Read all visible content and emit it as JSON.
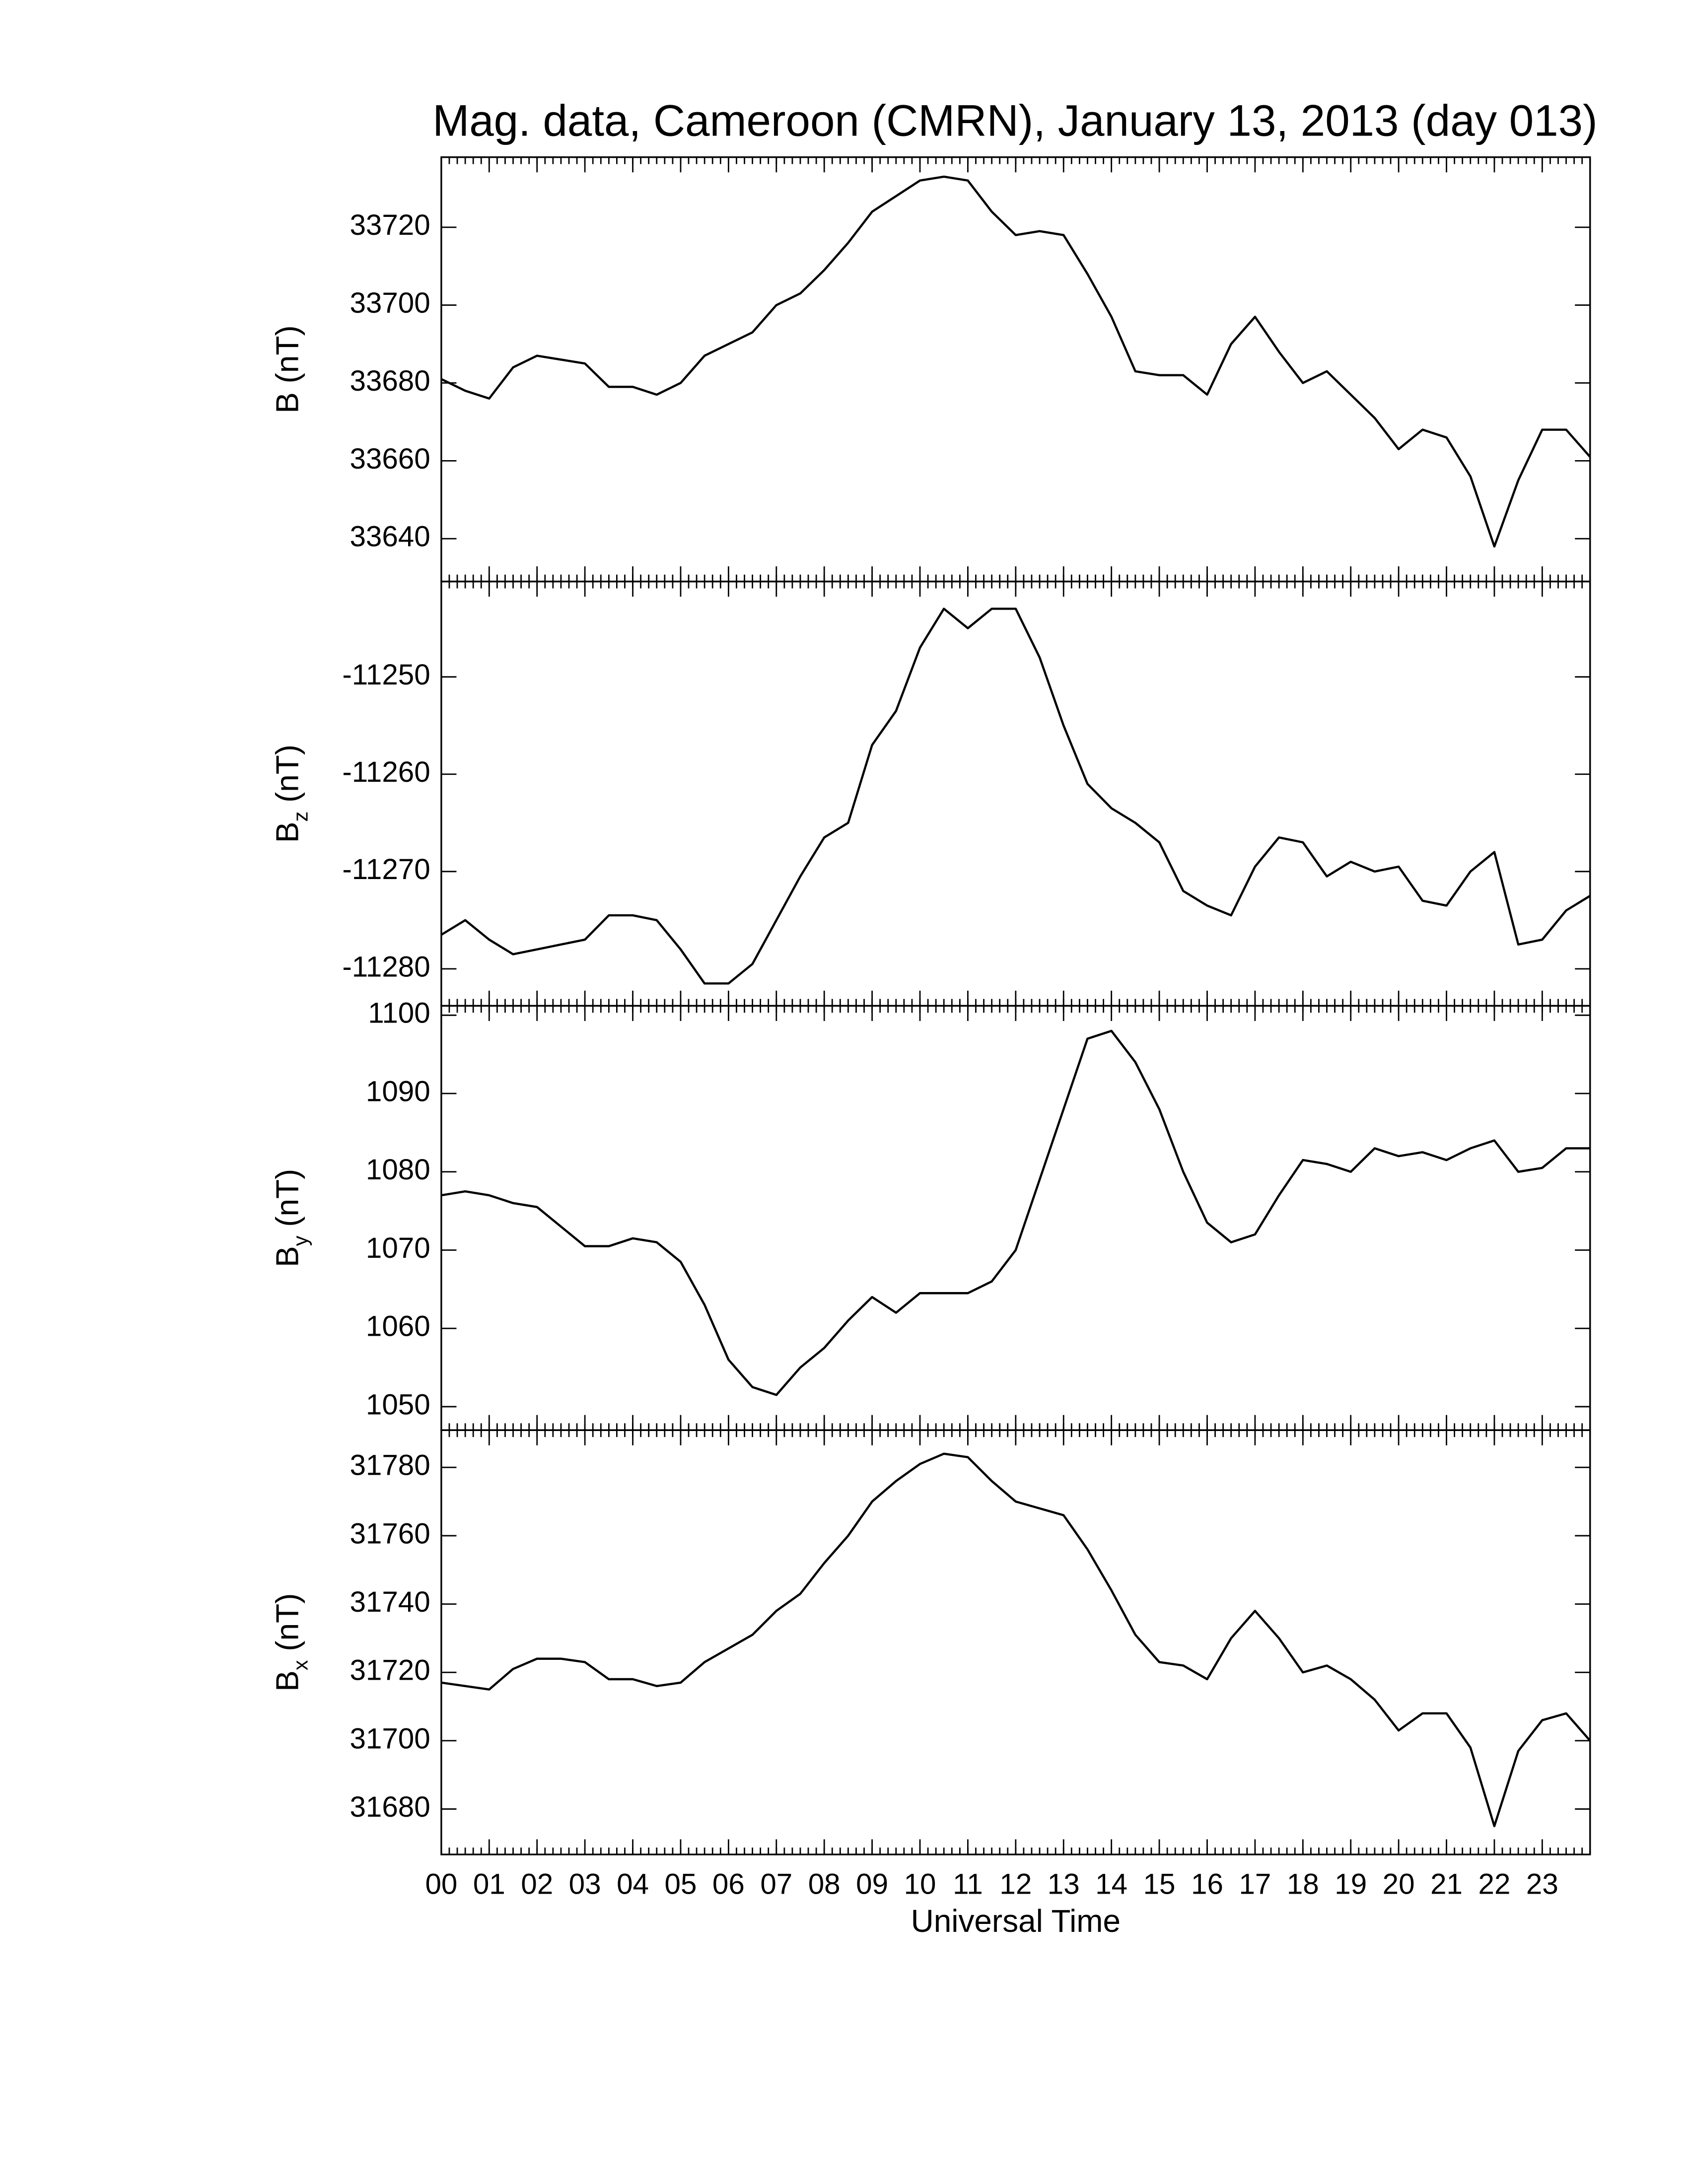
{
  "chart_data": [
    {
      "type": "line",
      "title": "Mag. data, Cameroon (CMRN), January 13, 2013 (day 013)",
      "y_label": {
        "symbol": "B",
        "unit": "(nT)"
      },
      "color": "#000000",
      "x": [
        0,
        0.5,
        1,
        1.5,
        2,
        2.5,
        3,
        3.5,
        4,
        4.5,
        5,
        5.5,
        6,
        6.5,
        7,
        7.5,
        8,
        8.5,
        9,
        9.5,
        10,
        10.5,
        11,
        11.5,
        12,
        12.5,
        13,
        13.5,
        14,
        14.5,
        15,
        15.5,
        16,
        16.5,
        17,
        17.5,
        18,
        18.5,
        19,
        19.5,
        20,
        20.5,
        21,
        21.5,
        22,
        22.5,
        23,
        23.5,
        24
      ],
      "values": [
        33681,
        33678,
        33676,
        33684,
        33687,
        33686,
        33685,
        33679,
        33679,
        33677,
        33680,
        33687,
        33690,
        33693,
        33700,
        33703,
        33709,
        33716,
        33724,
        33728,
        33732,
        33733,
        33732,
        33724,
        33718,
        33719,
        33718,
        33708,
        33697,
        33683,
        33682,
        33682,
        33677,
        33690,
        33697,
        33688,
        33680,
        33683,
        33677,
        33671,
        33663,
        33668,
        33666,
        33656,
        33638,
        33655,
        33668,
        33668,
        33661
      ],
      "xlim": [
        0,
        24
      ],
      "ylim": [
        33629,
        33738
      ],
      "yticks": [
        33640,
        33660,
        33680,
        33700,
        33720
      ]
    },
    {
      "type": "line",
      "y_label": {
        "symbol": "B",
        "subscript": "z",
        "unit": "(nT)"
      },
      "color": "#000000",
      "x": [
        0,
        0.5,
        1,
        1.5,
        2,
        2.5,
        3,
        3.5,
        4,
        4.5,
        5,
        5.5,
        6,
        6.5,
        7,
        7.5,
        8,
        8.5,
        9,
        9.5,
        10,
        10.5,
        11,
        11.5,
        12,
        12.5,
        13,
        13.5,
        14,
        14.5,
        15,
        15.5,
        16,
        16.5,
        17,
        17.5,
        18,
        18.5,
        19,
        19.5,
        20,
        20.5,
        21,
        21.5,
        22,
        22.5,
        23,
        23.5,
        24
      ],
      "values": [
        -11276.5,
        -11275,
        -11277,
        -11278.5,
        -11278,
        -11277.5,
        -11277,
        -11274.5,
        -11274.5,
        -11275,
        -11278,
        -11281.5,
        -11281.5,
        -11279.5,
        -11275,
        -11270.5,
        -11266.5,
        -11265,
        -11257,
        -11253.5,
        -11247,
        -11243,
        -11245,
        -11243,
        -11243,
        -11248,
        -11255,
        -11261,
        -11263.5,
        -11265,
        -11267,
        -11272,
        -11273.5,
        -11274.5,
        -11269.5,
        -11266.5,
        -11267,
        -11270.5,
        -11269,
        -11270,
        -11269.5,
        -11273,
        -11273.5,
        -11270,
        -11268,
        -11277.5,
        -11277,
        -11274,
        -11272.5
      ],
      "xlim": [
        0,
        24
      ],
      "ylim": [
        -11283.8,
        -11240.2
      ],
      "yticks": [
        -11280,
        -11270,
        -11260,
        -11250
      ]
    },
    {
      "type": "line",
      "y_label": {
        "symbol": "B",
        "subscript": "y",
        "unit": "(nT)"
      },
      "color": "#000000",
      "x": [
        0,
        0.5,
        1,
        1.5,
        2,
        2.5,
        3,
        3.5,
        4,
        4.5,
        5,
        5.5,
        6,
        6.5,
        7,
        7.5,
        8,
        8.5,
        9,
        9.5,
        10,
        10.5,
        11,
        11.5,
        12,
        12.5,
        13,
        13.5,
        14,
        14.5,
        15,
        15.5,
        16,
        16.5,
        17,
        17.5,
        18,
        18.5,
        19,
        19.5,
        20,
        20.5,
        21,
        21.5,
        22,
        22.5,
        23,
        23.5,
        24
      ],
      "values": [
        1077,
        1077.5,
        1077,
        1076,
        1075.5,
        1073,
        1070.5,
        1070.5,
        1071.5,
        1071,
        1068.5,
        1063,
        1056,
        1052.5,
        1051.5,
        1055,
        1057.5,
        1061,
        1064,
        1062,
        1064.5,
        1064.5,
        1064.5,
        1066,
        1070,
        1079,
        1088,
        1097,
        1098,
        1094,
        1088,
        1080,
        1073.5,
        1071,
        1072,
        1077,
        1081.5,
        1081,
        1080,
        1083,
        1082,
        1082.5,
        1081.5,
        1083,
        1084,
        1080,
        1080.5,
        1083,
        1083
      ],
      "xlim": [
        0,
        24
      ],
      "ylim": [
        1047,
        1101.2
      ],
      "yticks": [
        1050,
        1060,
        1070,
        1080,
        1090,
        1100
      ]
    },
    {
      "type": "line",
      "y_label": {
        "symbol": "B",
        "subscript": "x",
        "unit": "(nT)"
      },
      "x_label": "Universal Time",
      "color": "#000000",
      "x": [
        0,
        0.5,
        1,
        1.5,
        2,
        2.5,
        3,
        3.5,
        4,
        4.5,
        5,
        5.5,
        6,
        6.5,
        7,
        7.5,
        8,
        8.5,
        9,
        9.5,
        10,
        10.5,
        11,
        11.5,
        12,
        12.5,
        13,
        13.5,
        14,
        14.5,
        15,
        15.5,
        16,
        16.5,
        17,
        17.5,
        18,
        18.5,
        19,
        19.5,
        20,
        20.5,
        21,
        21.5,
        22,
        22.5,
        23,
        23.5,
        24
      ],
      "values": [
        31717,
        31716,
        31715,
        31721,
        31724,
        31724,
        31723,
        31718,
        31718,
        31716,
        31717,
        31723,
        31727,
        31731,
        31738,
        31743,
        31752,
        31760,
        31770,
        31776,
        31781,
        31784,
        31783,
        31776,
        31770,
        31768,
        31766,
        31756,
        31744,
        31731,
        31723,
        31722,
        31718,
        31730,
        31738,
        31730,
        31720,
        31722,
        31718,
        31712,
        31703,
        31708,
        31708,
        31698,
        31675,
        31697,
        31706,
        31708,
        31700
      ],
      "xlim": [
        0,
        24
      ],
      "ylim": [
        31666.7,
        31790.9
      ],
      "yticks": [
        31680,
        31700,
        31720,
        31740,
        31760,
        31780
      ],
      "xticks": [
        {
          "value": 0,
          "label": "00"
        },
        {
          "value": 1,
          "label": "01"
        },
        {
          "value": 2,
          "label": "02"
        },
        {
          "value": 3,
          "label": "03"
        },
        {
          "value": 4,
          "label": "04"
        },
        {
          "value": 5,
          "label": "05"
        },
        {
          "value": 6,
          "label": "06"
        },
        {
          "value": 7,
          "label": "07"
        },
        {
          "value": 8,
          "label": "08"
        },
        {
          "value": 9,
          "label": "09"
        },
        {
          "value": 10,
          "label": "10"
        },
        {
          "value": 11,
          "label": "11"
        },
        {
          "value": 12,
          "label": "12"
        },
        {
          "value": 13,
          "label": "13"
        },
        {
          "value": 14,
          "label": "14"
        },
        {
          "value": 15,
          "label": "15"
        },
        {
          "value": 16,
          "label": "16"
        },
        {
          "value": 17,
          "label": "17"
        },
        {
          "value": 18,
          "label": "18"
        },
        {
          "value": 19,
          "label": "19"
        },
        {
          "value": 20,
          "label": "20"
        },
        {
          "value": 21,
          "label": "21"
        },
        {
          "value": 22,
          "label": "22"
        },
        {
          "value": 23,
          "label": "23"
        }
      ]
    }
  ]
}
